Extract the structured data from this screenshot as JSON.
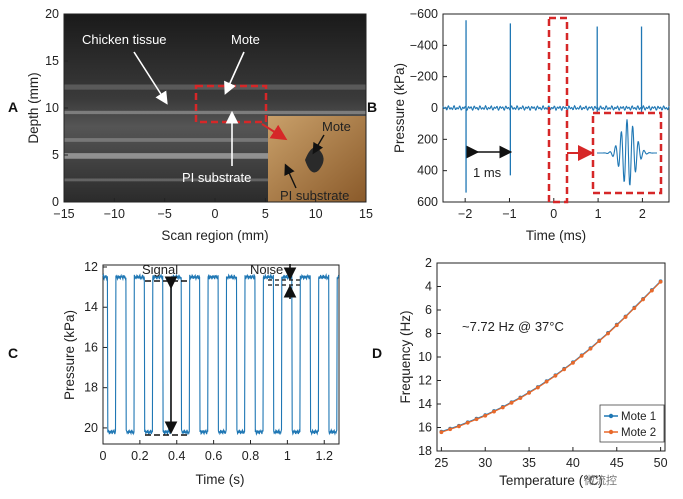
{
  "panel_labels": [
    "A",
    "B",
    "C",
    "D"
  ],
  "watermark": "微流控",
  "colors": {
    "blue": "#1f77b4",
    "orange": "#e8692b",
    "red_dash": "#d62728",
    "axis": "#222222"
  },
  "chart_data": [
    {
      "id": "A",
      "type": "image",
      "xlabel": "Scan region (mm)",
      "ylabel": "Depth (mm)",
      "xlim": [
        -15,
        15
      ],
      "ylim": [
        20,
        0
      ],
      "xticks": [
        "−15",
        "−10",
        "−5",
        "0",
        "5",
        "10",
        "15"
      ],
      "yticks": [
        "0",
        "5",
        "10",
        "15",
        "20"
      ],
      "annotations": {
        "chicken_tissue": "Chicken tissue",
        "mote": "Mote",
        "pi_substrate": "PI substrate",
        "inset_mote": "Mote",
        "inset_pi": "PI substrate"
      }
    },
    {
      "id": "B",
      "type": "line",
      "xlabel": "Time (ms)",
      "ylabel": "Pressure (kPa)",
      "xlim": [
        -2.5,
        2.6
      ],
      "ylim": [
        -600,
        600
      ],
      "xticks": [
        "−2",
        "−1",
        "0",
        "1",
        "2"
      ],
      "yticks": [
        "600",
        "400",
        "200",
        "0",
        "−200",
        "−400",
        "−600"
      ],
      "spikes": [
        {
          "x": -1.98,
          "pos": 560,
          "neg": -540
        },
        {
          "x": -0.98,
          "pos": 540,
          "neg": -430
        },
        {
          "x": 0.98,
          "pos": 520,
          "neg": -110
        },
        {
          "x": 1.98,
          "pos": 520,
          "neg": -60
        }
      ],
      "interval_label": "1 ms"
    },
    {
      "id": "C",
      "type": "line",
      "xlabel": "Time (s)",
      "ylabel": "Pressure (kPa)",
      "xlim": [
        0,
        1.28
      ],
      "ylim": [
        11.9,
        20.8
      ],
      "xticks": [
        "0",
        "0.2",
        "0.4",
        "0.6",
        "0.8",
        "1",
        "1.2"
      ],
      "yticks": [
        "20",
        "18",
        "16",
        "14",
        "12"
      ],
      "high_level": 20.2,
      "low_level": 12.5,
      "period": 0.1,
      "signal_label": "Signal",
      "noise_label": "Noise"
    },
    {
      "id": "D",
      "type": "line",
      "xlabel": "Temperature (°C)",
      "ylabel": "Frequency (Hz)",
      "xlim": [
        24.5,
        50.5
      ],
      "ylim": [
        2,
        18
      ],
      "xticks": [
        "25",
        "30",
        "35",
        "40",
        "45",
        "50"
      ],
      "yticks": [
        "18",
        "16",
        "14",
        "12",
        "10",
        "8",
        "6",
        "4",
        "2"
      ],
      "annotation": "~7.72 Hz @ 37°C",
      "x": [
        25,
        26,
        27,
        28,
        29,
        30,
        31,
        32,
        33,
        34,
        35,
        36,
        37,
        38,
        39,
        40,
        41,
        42,
        43,
        44,
        45,
        46,
        47,
        48,
        49,
        50
      ],
      "series": [
        {
          "name": "Mote 1",
          "values": [
            3.65,
            3.9,
            4.15,
            4.45,
            4.75,
            5.05,
            5.4,
            5.75,
            6.15,
            6.55,
            7.0,
            7.45,
            7.95,
            8.45,
            9.0,
            9.55,
            10.15,
            10.75,
            11.4,
            12.05,
            12.75,
            13.45,
            14.2,
            14.95,
            15.7,
            16.45
          ]
        },
        {
          "name": "Mote 2",
          "values": [
            3.6,
            3.85,
            4.1,
            4.4,
            4.7,
            5.0,
            5.35,
            5.7,
            6.1,
            6.5,
            6.95,
            7.4,
            7.9,
            8.4,
            8.95,
            9.5,
            10.1,
            10.7,
            11.35,
            12.0,
            12.7,
            13.4,
            14.15,
            14.9,
            15.65,
            16.4
          ]
        }
      ],
      "legend_position": "bottom-right"
    }
  ]
}
